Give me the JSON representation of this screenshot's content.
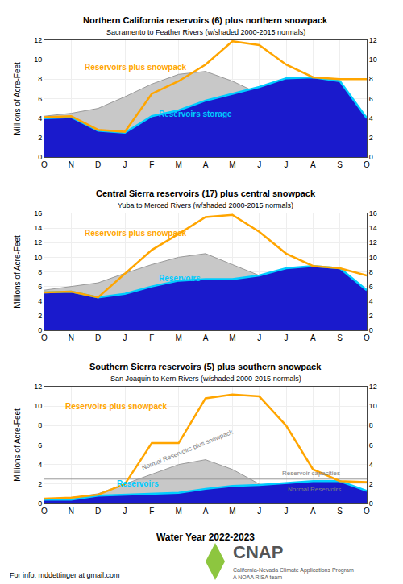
{
  "chart_data": [
    {
      "type": "line",
      "title": "Northern California reservoirs (6) plus northern snowpack",
      "subtitle": "Sacramento to Feather Rivers (w/shaded 2000-2015 normals)",
      "ylabel": "Millions of Acre-Feet",
      "categories": [
        "O",
        "N",
        "D",
        "J",
        "F",
        "M",
        "A",
        "M",
        "J",
        "J",
        "A",
        "S",
        "O"
      ],
      "ylim": [
        0,
        12
      ],
      "yticks": [
        0,
        2,
        4,
        6,
        8,
        10,
        12
      ],
      "y2lim": [
        0,
        12
      ],
      "y2ticks": [
        0,
        2,
        4,
        6,
        8,
        10,
        12
      ],
      "grid": true,
      "series": [
        {
          "type": "area",
          "color": "#C8C8C8",
          "values": [
            4.2,
            4.5,
            5.0,
            6.2,
            7.5,
            8.5,
            8.8,
            7.8,
            6.5,
            5.5,
            5.0,
            4.6,
            4.2
          ]
        },
        {
          "type": "line",
          "color": "#999999",
          "values": [
            4.2,
            4.5,
            5.0,
            6.2,
            7.5,
            8.5,
            8.8,
            7.8,
            6.5,
            5.5,
            5.0,
            4.6,
            4.2
          ]
        },
        {
          "type": "area",
          "color": "#1A1ACC",
          "values": [
            4.0,
            4.1,
            2.7,
            2.5,
            4.2,
            4.8,
            5.8,
            6.5,
            7.2,
            8.1,
            8.2,
            7.8,
            4.0
          ]
        },
        {
          "type": "line",
          "name": "Reservoirs storage",
          "color": "#00CCFF",
          "values": [
            4.0,
            4.1,
            2.7,
            2.5,
            4.2,
            4.8,
            5.8,
            6.5,
            7.2,
            8.1,
            8.2,
            7.8,
            4.0
          ]
        },
        {
          "type": "line",
          "name": "Reservoirs plus snowpack",
          "color": "#FFA500",
          "values": [
            4.1,
            4.2,
            2.8,
            2.6,
            6.5,
            7.8,
            9.5,
            11.9,
            11.5,
            9.5,
            8.2,
            8.0,
            8.0
          ]
        }
      ]
    },
    {
      "type": "line",
      "title": "Central Sierra reservoirs (17) plus central snowpack",
      "subtitle": "Yuba to Merced Rivers (w/shaded 2000-2015 normals)",
      "ylabel": "Millions of Acre-Feet",
      "categories": [
        "O",
        "N",
        "D",
        "J",
        "F",
        "M",
        "A",
        "M",
        "J",
        "J",
        "A",
        "S",
        "O"
      ],
      "ylim": [
        0,
        16
      ],
      "yticks": [
        0,
        2,
        4,
        6,
        8,
        10,
        12,
        14,
        16
      ],
      "y2lim": [
        0,
        16
      ],
      "y2ticks": [
        0,
        2,
        4,
        6,
        8,
        10,
        12,
        14,
        16
      ],
      "grid": true,
      "series": [
        {
          "type": "area",
          "color": "#C8C8C8",
          "values": [
            5.5,
            6.0,
            6.5,
            7.8,
            9.0,
            10.0,
            10.5,
            9.0,
            7.5,
            6.5,
            6.0,
            5.7,
            5.5
          ]
        },
        {
          "type": "line",
          "color": "#999999",
          "values": [
            5.5,
            6.0,
            6.5,
            7.8,
            9.0,
            10.0,
            10.5,
            9.0,
            7.5,
            6.5,
            6.0,
            5.7,
            5.5
          ]
        },
        {
          "type": "area",
          "color": "#1A1ACC",
          "values": [
            5.2,
            5.3,
            4.5,
            5.0,
            6.0,
            6.8,
            7.0,
            7.0,
            7.5,
            8.5,
            8.8,
            8.5,
            5.5
          ]
        },
        {
          "type": "line",
          "name": "Reservoirs",
          "color": "#00CCFF",
          "values": [
            5.2,
            5.3,
            4.5,
            5.0,
            6.0,
            6.8,
            7.0,
            7.0,
            7.5,
            8.5,
            8.8,
            8.5,
            5.5
          ]
        },
        {
          "type": "line",
          "name": "Reservoirs plus snowpack",
          "color": "#FFA500",
          "values": [
            5.2,
            5.3,
            4.5,
            7.8,
            11.0,
            13.2,
            15.5,
            15.8,
            13.5,
            10.5,
            8.8,
            8.5,
            7.5
          ]
        }
      ]
    },
    {
      "type": "line",
      "title": "Southern Sierra reservoirs (5) plus southern snowpack",
      "subtitle": "San Joaquin to Kern Rivers (w/shaded 2000-2015 normals)",
      "ylabel": "Millions of Acre-Feet",
      "xlabel": "Water Year 2022-2023",
      "categories": [
        "O",
        "N",
        "D",
        "J",
        "F",
        "M",
        "A",
        "M",
        "J",
        "J",
        "A",
        "S",
        "O"
      ],
      "ylim": [
        0,
        12
      ],
      "yticks": [
        0,
        2,
        4,
        6,
        8,
        10,
        12
      ],
      "y2lim": [
        0,
        12
      ],
      "y2ticks": [
        0,
        2,
        4,
        6,
        8,
        10,
        12
      ],
      "grid": true,
      "series": [
        {
          "type": "area",
          "color": "#C8C8C8",
          "values": [
            0.5,
            0.6,
            1.0,
            2.0,
            3.0,
            4.0,
            4.5,
            3.5,
            2.0,
            1.0,
            0.5,
            0.4,
            0.5
          ]
        },
        {
          "type": "line",
          "color": "#999999",
          "values": [
            0.5,
            0.6,
            1.0,
            2.0,
            3.0,
            4.0,
            4.5,
            3.5,
            2.0,
            1.0,
            0.5,
            0.4,
            0.5
          ]
        },
        {
          "type": "line",
          "color": "#999999",
          "values": [
            2.5,
            2.5,
            2.5,
            2.5,
            2.5,
            2.5,
            2.5,
            2.5,
            2.5,
            2.5,
            2.5,
            2.5,
            2.5
          ]
        },
        {
          "type": "area",
          "color": "#1A1ACC",
          "values": [
            0.4,
            0.4,
            0.8,
            0.9,
            1.0,
            1.1,
            1.5,
            1.8,
            1.9,
            2.1,
            2.3,
            2.3,
            1.3
          ]
        },
        {
          "type": "line",
          "name": "Reservoirs",
          "color": "#00CCFF",
          "values": [
            0.4,
            0.4,
            0.8,
            0.9,
            1.0,
            1.1,
            1.5,
            1.8,
            1.9,
            2.1,
            2.3,
            2.3,
            1.3
          ]
        },
        {
          "type": "line",
          "name": "Reservoirs plus snowpack",
          "color": "#FFA500",
          "values": [
            0.5,
            0.6,
            0.9,
            2.0,
            6.2,
            6.2,
            10.8,
            11.2,
            11.0,
            8.0,
            3.5,
            2.3,
            2.2
          ]
        }
      ],
      "annotations": [
        "Normal Reservoirs plus snowpack",
        "Normal Reservoirs",
        "Reservoir capacities"
      ]
    }
  ],
  "footer": "For info: mddettinger at gmail.com",
  "logo": {
    "text": "CNAP",
    "subtitle": "California-Nevada Climate Applications Program\nA NOAA RISA team",
    "color": "#8DC63F"
  }
}
